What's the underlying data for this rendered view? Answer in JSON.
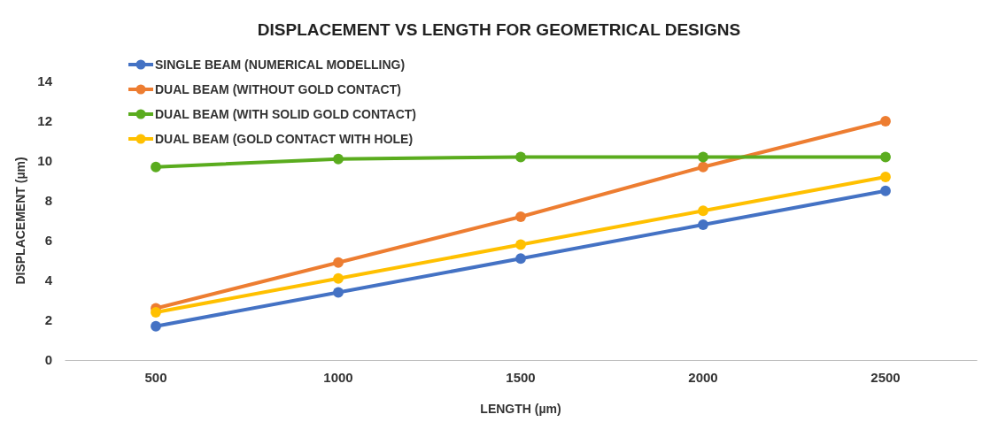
{
  "chart_data": {
    "type": "line",
    "title": "DISPLACEMENT VS LENGTH  FOR GEOMETRICAL DESIGNS",
    "xlabel": "LENGTH (µm)",
    "ylabel": "DISPLACEMENT (µm)",
    "categories": [
      "500",
      "1000",
      "1500",
      "2000",
      "2500"
    ],
    "ylim": [
      0,
      14
    ],
    "yticks": [
      0,
      2,
      4,
      6,
      8,
      10,
      12,
      14
    ],
    "grid": false,
    "legend": "top left",
    "marker": "circle",
    "line_style": "solid",
    "series": [
      {
        "name": "SINGLE BEAM (NUMERICAL MODELLING)",
        "color": "#4472c4",
        "values": [
          1.7,
          3.4,
          5.1,
          6.8,
          8.5
        ]
      },
      {
        "name": "DUAL BEAM (WITHOUT GOLD CONTACT)",
        "color": "#ed7d31",
        "values": [
          2.6,
          4.9,
          7.2,
          9.7,
          12.0
        ]
      },
      {
        "name": "DUAL BEAM (WITH SOLID GOLD CONTACT)",
        "color": "#5aac1e",
        "values": [
          9.7,
          10.1,
          10.2,
          10.2,
          10.2
        ]
      },
      {
        "name": "DUAL BEAM (GOLD CONTACT WITH HOLE)",
        "color": "#ffc000",
        "values": [
          2.4,
          4.1,
          5.8,
          7.5,
          9.2
        ]
      }
    ]
  }
}
